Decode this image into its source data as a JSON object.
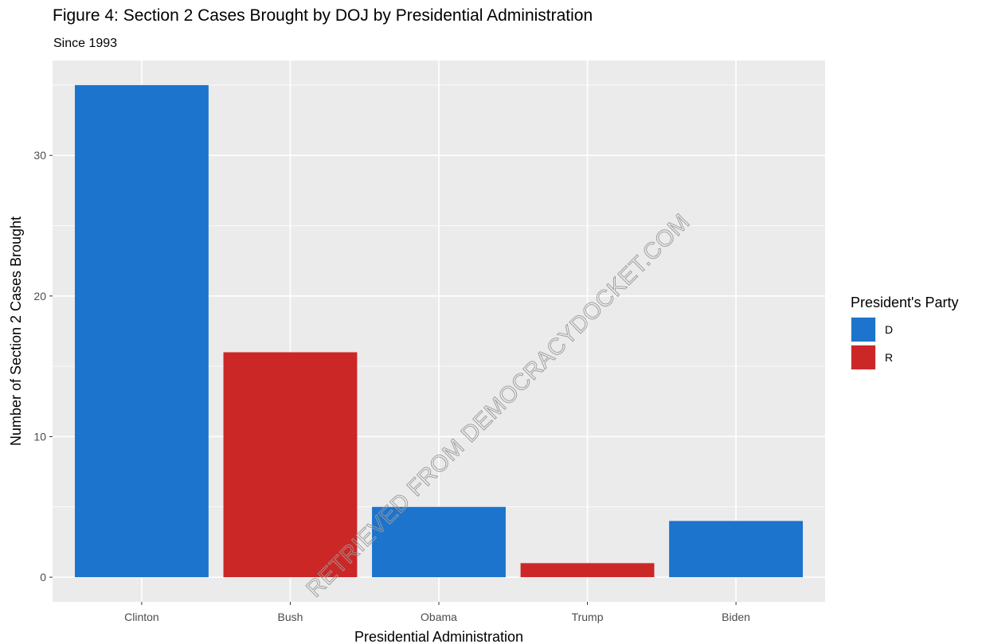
{
  "chart_data": {
    "type": "bar",
    "title": "Figure 4: Section 2 Cases Brought by DOJ by Presidential Administration",
    "subtitle": "Since 1993",
    "xlabel": "Presidential Administration",
    "ylabel": "Number of Section 2 Cases Brought",
    "categories": [
      "Clinton",
      "Bush",
      "Obama",
      "Trump",
      "Biden"
    ],
    "values": [
      35,
      16,
      5,
      1,
      4
    ],
    "party": [
      "D",
      "R",
      "D",
      "R",
      "D"
    ],
    "ylim": [
      0,
      35
    ],
    "yticks": [
      0,
      10,
      20,
      30
    ],
    "grid": true,
    "legend": {
      "title": "President's Party",
      "position": "right",
      "entries": [
        {
          "label": "D",
          "color": "#1c74cc"
        },
        {
          "label": "R",
          "color": "#cc2727"
        }
      ]
    }
  },
  "colors": {
    "D": "#1c74cc",
    "R": "#cc2727",
    "panel": "#ebebeb",
    "grid": "#ffffff"
  },
  "watermark": "RETRIEVED FROM DEMOCRACYDOCKET.COM"
}
